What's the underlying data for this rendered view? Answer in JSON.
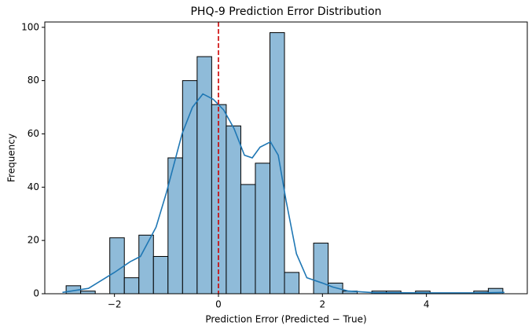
{
  "chart_data": {
    "type": "histogram",
    "title": "PHQ-9 Prediction Error Distribution",
    "x_label": "Prediction Error (Predicted − True)",
    "y_label": "Frequency",
    "bins": [
      -2.93,
      -2.65,
      -2.37,
      -2.09,
      -1.81,
      -1.53,
      -1.25,
      -0.97,
      -0.69,
      -0.41,
      -0.13,
      0.15,
      0.43,
      0.71,
      0.99,
      1.27,
      1.55,
      1.83,
      2.11,
      2.39,
      2.67,
      2.95,
      3.23,
      3.51,
      3.79,
      4.07,
      4.35,
      4.63,
      4.91,
      5.19,
      5.47
    ],
    "values": [
      3,
      1,
      0,
      21,
      6,
      22,
      14,
      51,
      80,
      89,
      71,
      63,
      41,
      49,
      98,
      8,
      0,
      19,
      4,
      1,
      0,
      1,
      1,
      0,
      1,
      0,
      0,
      0,
      1,
      2
    ],
    "color": "#8fbbd9",
    "edge_color": "#000000",
    "kde": {
      "color": "#1f77b4",
      "x": [
        -3,
        -2.5,
        -2,
        -1.7,
        -1.5,
        -1.2,
        -1,
        -0.7,
        -0.5,
        -0.3,
        -0.1,
        0.1,
        0.3,
        0.5,
        0.65,
        0.8,
        1,
        1.15,
        1.3,
        1.5,
        1.7,
        2,
        2.2,
        2.5,
        3,
        4,
        5,
        5.5
      ],
      "values": [
        0.5,
        2,
        8,
        12,
        14,
        25,
        38,
        60,
        70,
        75,
        73,
        69,
        62,
        52,
        51,
        55,
        57,
        52,
        35,
        15,
        6,
        4,
        2.5,
        1,
        0.4,
        0.3,
        0.3,
        0.5
      ]
    },
    "vline": {
      "x": 0,
      "color": "#cc0000"
    },
    "xlim": [
      -3.34,
      5.94
    ],
    "ylim": [
      0,
      102
    ],
    "xticks": [
      {
        "value": -2,
        "label": "−2"
      },
      0,
      2,
      4
    ],
    "yticks": [
      0,
      20,
      40,
      60,
      80,
      100
    ]
  }
}
